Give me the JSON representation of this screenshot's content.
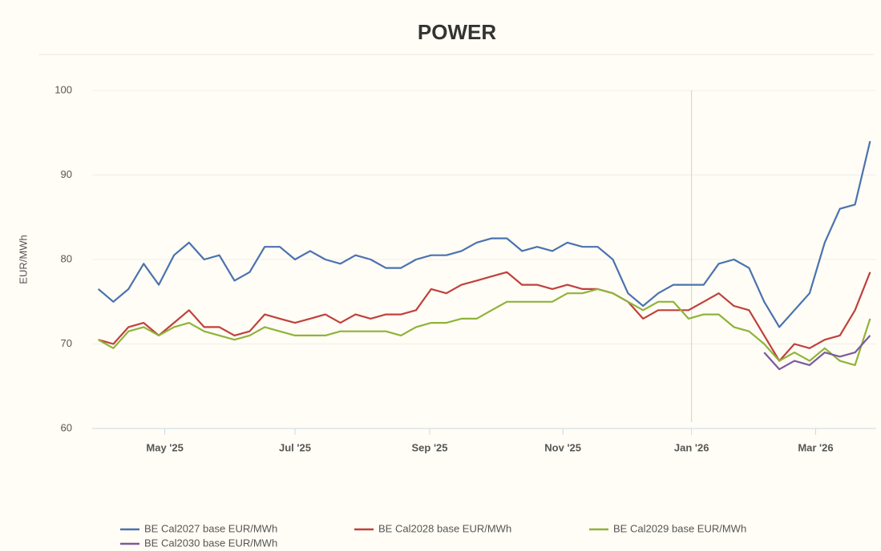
{
  "chart_data": {
    "type": "line",
    "title": "POWER",
    "y_label": "EUR/MWh",
    "categories": [
      null,
      null,
      null,
      null,
      null,
      null,
      null,
      null,
      null,
      null,
      null,
      null,
      null,
      null,
      null,
      null,
      null,
      null,
      null,
      null,
      null,
      null,
      null,
      null,
      null,
      null,
      null,
      null,
      null,
      null,
      null,
      null,
      null,
      null,
      null,
      null,
      null,
      null,
      null,
      null,
      null,
      null,
      null,
      null,
      null,
      null,
      null,
      null,
      null,
      null,
      null,
      null
    ],
    "xlim": [
      -0.4,
      51.4
    ],
    "xticks": [
      {
        "value": 4.4,
        "label": "May '25"
      },
      {
        "value": 13,
        "label": "Jul '25"
      },
      {
        "value": 21.9,
        "label": "Sep '25"
      },
      {
        "value": 30.7,
        "label": "Nov '25"
      },
      {
        "value": 39.2,
        "label": "Jan '26"
      },
      {
        "value": 47.4,
        "label": "Mar '26"
      }
    ],
    "ylim": [
      60,
      100
    ],
    "yticks": [
      60,
      70,
      80,
      90,
      100
    ],
    "grid": true,
    "series": [
      {
        "name": "BE Cal2027 base EUR/MWh",
        "color": "#4a72b0",
        "values": [
          76.5,
          75,
          76.5,
          79.5,
          77,
          80.5,
          82,
          80,
          80.5,
          77.5,
          78.5,
          81.5,
          81.5,
          80,
          81,
          80,
          79.5,
          80.5,
          80,
          79,
          79,
          80,
          80.5,
          80.5,
          81,
          82,
          82.5,
          82.5,
          81,
          81.5,
          81,
          82,
          81.5,
          81.5,
          80,
          76,
          74.5,
          76,
          77,
          77,
          77,
          79.5,
          80,
          79,
          75,
          72,
          74,
          76,
          82,
          86,
          86.5,
          94
        ]
      },
      {
        "name": "BE Cal2028 base EUR/MWh",
        "color": "#c0403c",
        "values": [
          70.5,
          70,
          72,
          72.5,
          71,
          72.5,
          74,
          72,
          72,
          71,
          71.5,
          73.5,
          73,
          72.5,
          73,
          73.5,
          72.5,
          73.5,
          73,
          73.5,
          73.5,
          74,
          76.5,
          76,
          77,
          77.5,
          78,
          78.5,
          77,
          77,
          76.5,
          77,
          76.5,
          76.5,
          76,
          75,
          73,
          74,
          74,
          74,
          75,
          76,
          74.5,
          74,
          71,
          68,
          70,
          69.5,
          70.5,
          71,
          74,
          78.5
        ]
      },
      {
        "name": "BE Cal2029 base EUR/MWh",
        "color": "#8fb33a",
        "values": [
          70.5,
          69.5,
          71.5,
          72,
          71,
          72,
          72.5,
          71.5,
          71,
          70.5,
          71,
          72,
          71.5,
          71,
          71,
          71,
          71.5,
          71.5,
          71.5,
          71.5,
          71,
          72,
          72.5,
          72.5,
          73,
          73,
          74,
          75,
          75,
          75,
          75,
          76,
          76,
          76.5,
          76,
          75,
          74,
          75,
          75,
          73,
          73.5,
          73.5,
          72,
          71.5,
          70,
          68,
          69,
          68,
          69.5,
          68,
          67.5,
          73
        ]
      },
      {
        "name": "BE Cal2030 base EUR/MWh",
        "color": "#7b5a9e",
        "values": [
          null,
          null,
          null,
          null,
          null,
          null,
          null,
          null,
          null,
          null,
          null,
          null,
          null,
          null,
          null,
          null,
          null,
          null,
          null,
          null,
          null,
          null,
          null,
          null,
          null,
          null,
          null,
          null,
          null,
          null,
          null,
          null,
          null,
          null,
          null,
          null,
          null,
          null,
          null,
          null,
          null,
          null,
          null,
          null,
          69,
          67,
          68,
          67.5,
          69,
          68.5,
          69,
          71
        ]
      }
    ]
  }
}
